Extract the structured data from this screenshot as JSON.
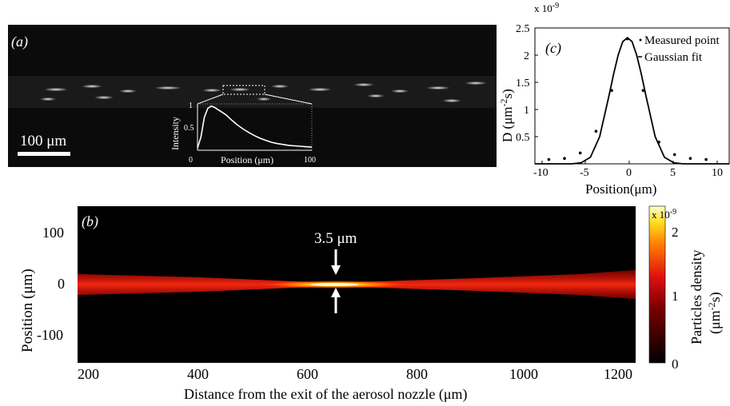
{
  "panel_a": {
    "label": "(a)",
    "scalebar_label": "100 μm",
    "inset_ylabel": "Intensity",
    "inset_xlabel": "Position (μm)",
    "inset_yticks": [
      "1",
      "0.5"
    ],
    "inset_xticks": [
      "0",
      "100"
    ]
  },
  "panel_c": {
    "label": "(c)",
    "exponent": "x 10",
    "exponent_power": "-9",
    "ylabel_main": "D (μm",
    "ylabel_sup": "-2",
    "ylabel_end": "s)",
    "xlabel": "Position(μm)",
    "legend": [
      "Measured point",
      "Gaussian fit"
    ],
    "yticks": [
      "0.5",
      "1",
      "1.5",
      "2",
      "2.5"
    ],
    "xticks": [
      "-10",
      "-5",
      "0",
      "5",
      "10"
    ]
  },
  "panel_b": {
    "label": "(b)",
    "annotation": "3.5 μm",
    "ylabel": "Position (μm)",
    "xlabel": "Distance from the exit of the aerosol nozzle (μm)",
    "yticks": [
      "100",
      "0",
      "-100"
    ],
    "xticks": [
      "200",
      "400",
      "600",
      "800",
      "1000",
      "1200"
    ],
    "colorbar": {
      "label_main": "Particles density",
      "label_sub_start": "(μm",
      "label_sub_sup": "-2",
      "label_sub_end": "s)",
      "exponent": "x 10",
      "exponent_power": "-9",
      "ticks": [
        "2",
        "1",
        "0"
      ]
    }
  },
  "chart_data": [
    {
      "type": "line",
      "title": "",
      "xlabel": "Position (μm)",
      "ylabel": "Intensity",
      "xlim": [
        0,
        100
      ],
      "ylim": [
        0,
        1.05
      ],
      "series": [
        {
          "x": [
            0,
            3,
            6,
            9,
            12,
            15,
            18,
            21,
            25,
            30,
            35,
            40,
            45,
            50,
            55,
            60,
            65,
            70,
            75,
            80,
            85,
            90,
            95,
            100
          ],
          "values": [
            0.05,
            0.3,
            0.75,
            0.95,
            1.0,
            0.97,
            0.92,
            0.87,
            0.8,
            0.68,
            0.57,
            0.48,
            0.4,
            0.33,
            0.27,
            0.22,
            0.18,
            0.15,
            0.13,
            0.11,
            0.1,
            0.09,
            0.08,
            0.07
          ]
        }
      ]
    },
    {
      "type": "scatter",
      "title": "",
      "xlabel": "Position(μm)",
      "ylabel": "D (μm-2s)",
      "xlim": [
        -10,
        11
      ],
      "ylim": [
        0,
        2.5
      ],
      "y_multiplier": "x 10-9",
      "series": [
        {
          "name": "Measured point",
          "x": [
            -8.5,
            -6.8,
            -5.1,
            -3.4,
            -1.7,
            0,
            1.7,
            3.4,
            5.1,
            6.8,
            8.5
          ],
          "values": [
            0.08,
            0.1,
            0.2,
            0.6,
            1.35,
            2.3,
            1.35,
            0.4,
            0.17,
            0.1,
            0.08
          ]
        },
        {
          "name": "Gaussian fit",
          "x": [
            -10,
            -8,
            -6,
            -5,
            -4,
            -3,
            -2,
            -1.5,
            -1,
            -0.5,
            0,
            0.5,
            1,
            1.5,
            2,
            3,
            4,
            5,
            6,
            8,
            11
          ],
          "values": [
            0,
            0,
            0,
            0.02,
            0.12,
            0.5,
            1.25,
            1.65,
            2.0,
            2.25,
            2.32,
            2.25,
            2.0,
            1.65,
            1.25,
            0.5,
            0.12,
            0.02,
            0,
            0,
            0
          ]
        }
      ]
    },
    {
      "type": "heatmap",
      "title": "",
      "xlabel": "Distance from the exit of the aerosol nozzle (μm)",
      "ylabel": "Position (μm)",
      "xlim": [
        180,
        1200
      ],
      "ylim": [
        -150,
        150
      ],
      "colorbar_range": [
        0,
        2.3
      ],
      "colorbar_multiplier": "x 10-9",
      "focus_x": 650,
      "focus_width_label": "3.5 μm",
      "beam_halfwidth_x": [
        180,
        400,
        600,
        650,
        700,
        900,
        1100,
        1200
      ],
      "beam_halfwidth_y": [
        20,
        14,
        5,
        2,
        5,
        12,
        20,
        28
      ]
    }
  ]
}
